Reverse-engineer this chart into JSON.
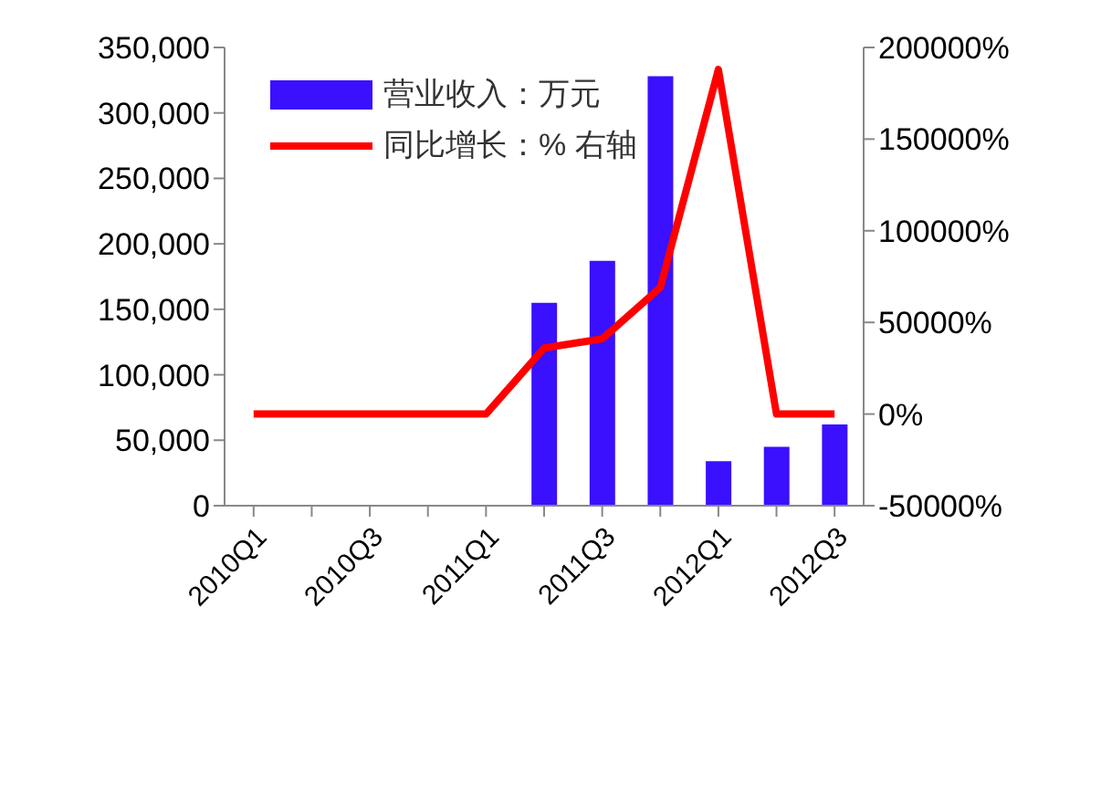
{
  "chart_data": {
    "type": "bar",
    "categories": [
      "2010Q1",
      null,
      "2010Q3",
      null,
      "2011Q1",
      null,
      "2011Q3",
      null,
      "2012Q1",
      null,
      "2012Q3"
    ],
    "series": [
      {
        "name": "营业收入：万元",
        "color": "#3a10ff",
        "values": [
          null,
          null,
          null,
          null,
          null,
          155000,
          187000,
          328000,
          34000,
          45000,
          62000
        ]
      },
      {
        "name": "同比增长：% 右轴",
        "type": "line",
        "axis": "y2",
        "color": "#ff0000",
        "values": [
          0,
          0,
          0,
          0,
          0,
          36000,
          41000,
          69000,
          188000,
          0,
          0
        ]
      }
    ],
    "ylim": [
      0,
      350000
    ],
    "yticks": [
      0,
      {
        "value": 50000,
        "label": "50,000"
      },
      {
        "value": 100000,
        "label": "100,000"
      },
      {
        "value": 150000,
        "label": "150,000"
      },
      {
        "value": 200000,
        "label": "200,000"
      },
      {
        "value": 250000,
        "label": "250,000"
      },
      {
        "value": 300000,
        "label": "300,000"
      },
      {
        "value": 350000,
        "label": "350,000"
      }
    ],
    "y2lim": [
      -50000,
      200000
    ],
    "y2ticks": [
      {
        "value": -50000,
        "label": "-50000%"
      },
      {
        "value": 0,
        "label": "0%"
      },
      {
        "value": 50000,
        "label": "50000%"
      },
      {
        "value": 100000,
        "label": "100000%"
      },
      {
        "value": 150000,
        "label": "150000%"
      },
      {
        "value": 200000,
        "label": "200000%"
      }
    ],
    "legend": "top left",
    "grid": false,
    "marker": "none"
  }
}
